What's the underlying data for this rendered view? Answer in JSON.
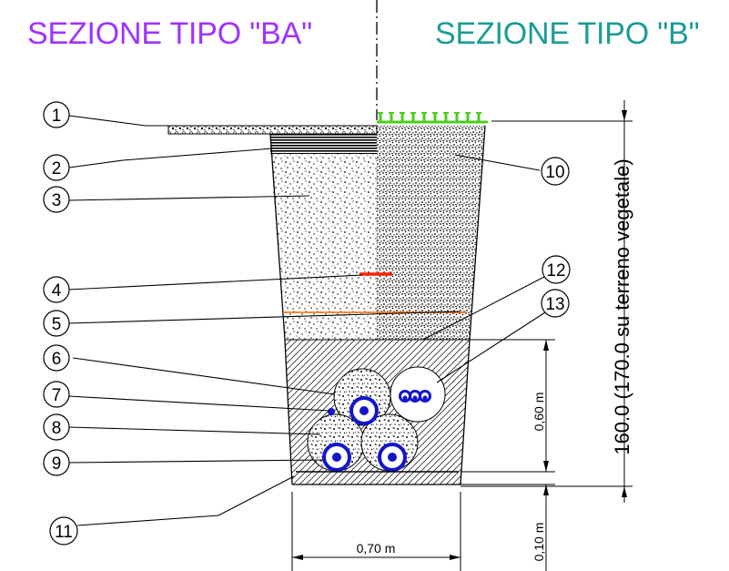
{
  "colors": {
    "title_left": "#a033ff",
    "title_right": "#1a9c96",
    "line": "#000000",
    "grass": "#4ccc1e",
    "pipe_core": "#1515cc",
    "marker_line": "#ff2200",
    "tape_line": "#ff6a00"
  },
  "titles": {
    "left": "SEZIONE TIPO \"BA\"",
    "right": "SEZIONE TIPO \"B\""
  },
  "callouts": [
    "1",
    "2",
    "3",
    "4",
    "5",
    "6",
    "7",
    "8",
    "9",
    "10",
    "11",
    "12",
    "13"
  ],
  "dimensions": {
    "upper_depth": "0,60 m",
    "bottom_depth": "0,10 m",
    "trench_width": "0,70 m",
    "total_depth": "160.0 (170.0 su terreno vegetale)"
  },
  "icons": {
    "grass": "grass-symbol-icon",
    "pipe": "cable-duct-icon"
  }
}
